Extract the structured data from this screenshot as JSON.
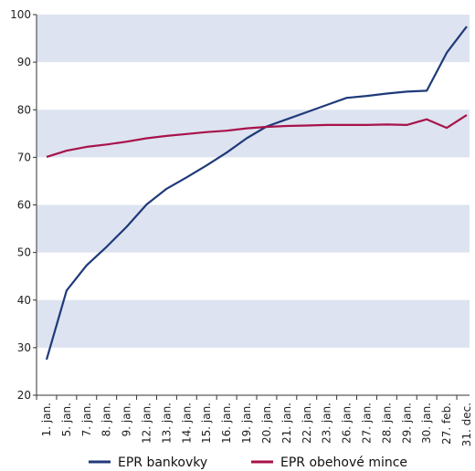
{
  "chart_data": {
    "type": "line",
    "categories": [
      "1. jan.",
      "5. jan.",
      "7. jan.",
      "8. jan.",
      "9. jan.",
      "12. jan.",
      "13. jan.",
      "14. jan.",
      "15. jan.",
      "16. jan.",
      "19. jan.",
      "20. jan.",
      "21. jan.",
      "22. jan.",
      "23. jan.",
      "26. jan.",
      "27. jan.",
      "28. jan.",
      "29. jan.",
      "30. jan.",
      "27. feb.",
      "31. dec."
    ],
    "series": [
      {
        "name": "EPR bankovky",
        "color": "#1f3a7a",
        "values": [
          27.5,
          42,
          47.3,
          51.2,
          55.4,
          60.1,
          63.4,
          65.8,
          68.3,
          71.0,
          74.0,
          76.5,
          78.0,
          79.5,
          81.0,
          82.5,
          82.9,
          83.4,
          83.8,
          84.0,
          92,
          97.5
        ]
      },
      {
        "name": "EPR obehové mince",
        "color": "#a8124a",
        "values": [
          70.1,
          71.4,
          72.2,
          72.7,
          73.3,
          74.0,
          74.5,
          74.9,
          75.3,
          75.6,
          76.1,
          76.4,
          76.6,
          76.7,
          76.8,
          76.8,
          76.8,
          76.9,
          76.8,
          78.0,
          76.2,
          78.9
        ]
      }
    ],
    "yticks": [
      "20",
      "30",
      "40",
      "50",
      "60",
      "70",
      "80",
      "90",
      "100"
    ],
    "ylim": [
      20,
      100
    ],
    "grid": "alternating horizontal bands",
    "band_color": "#dde3f0",
    "legend": "bottom"
  }
}
